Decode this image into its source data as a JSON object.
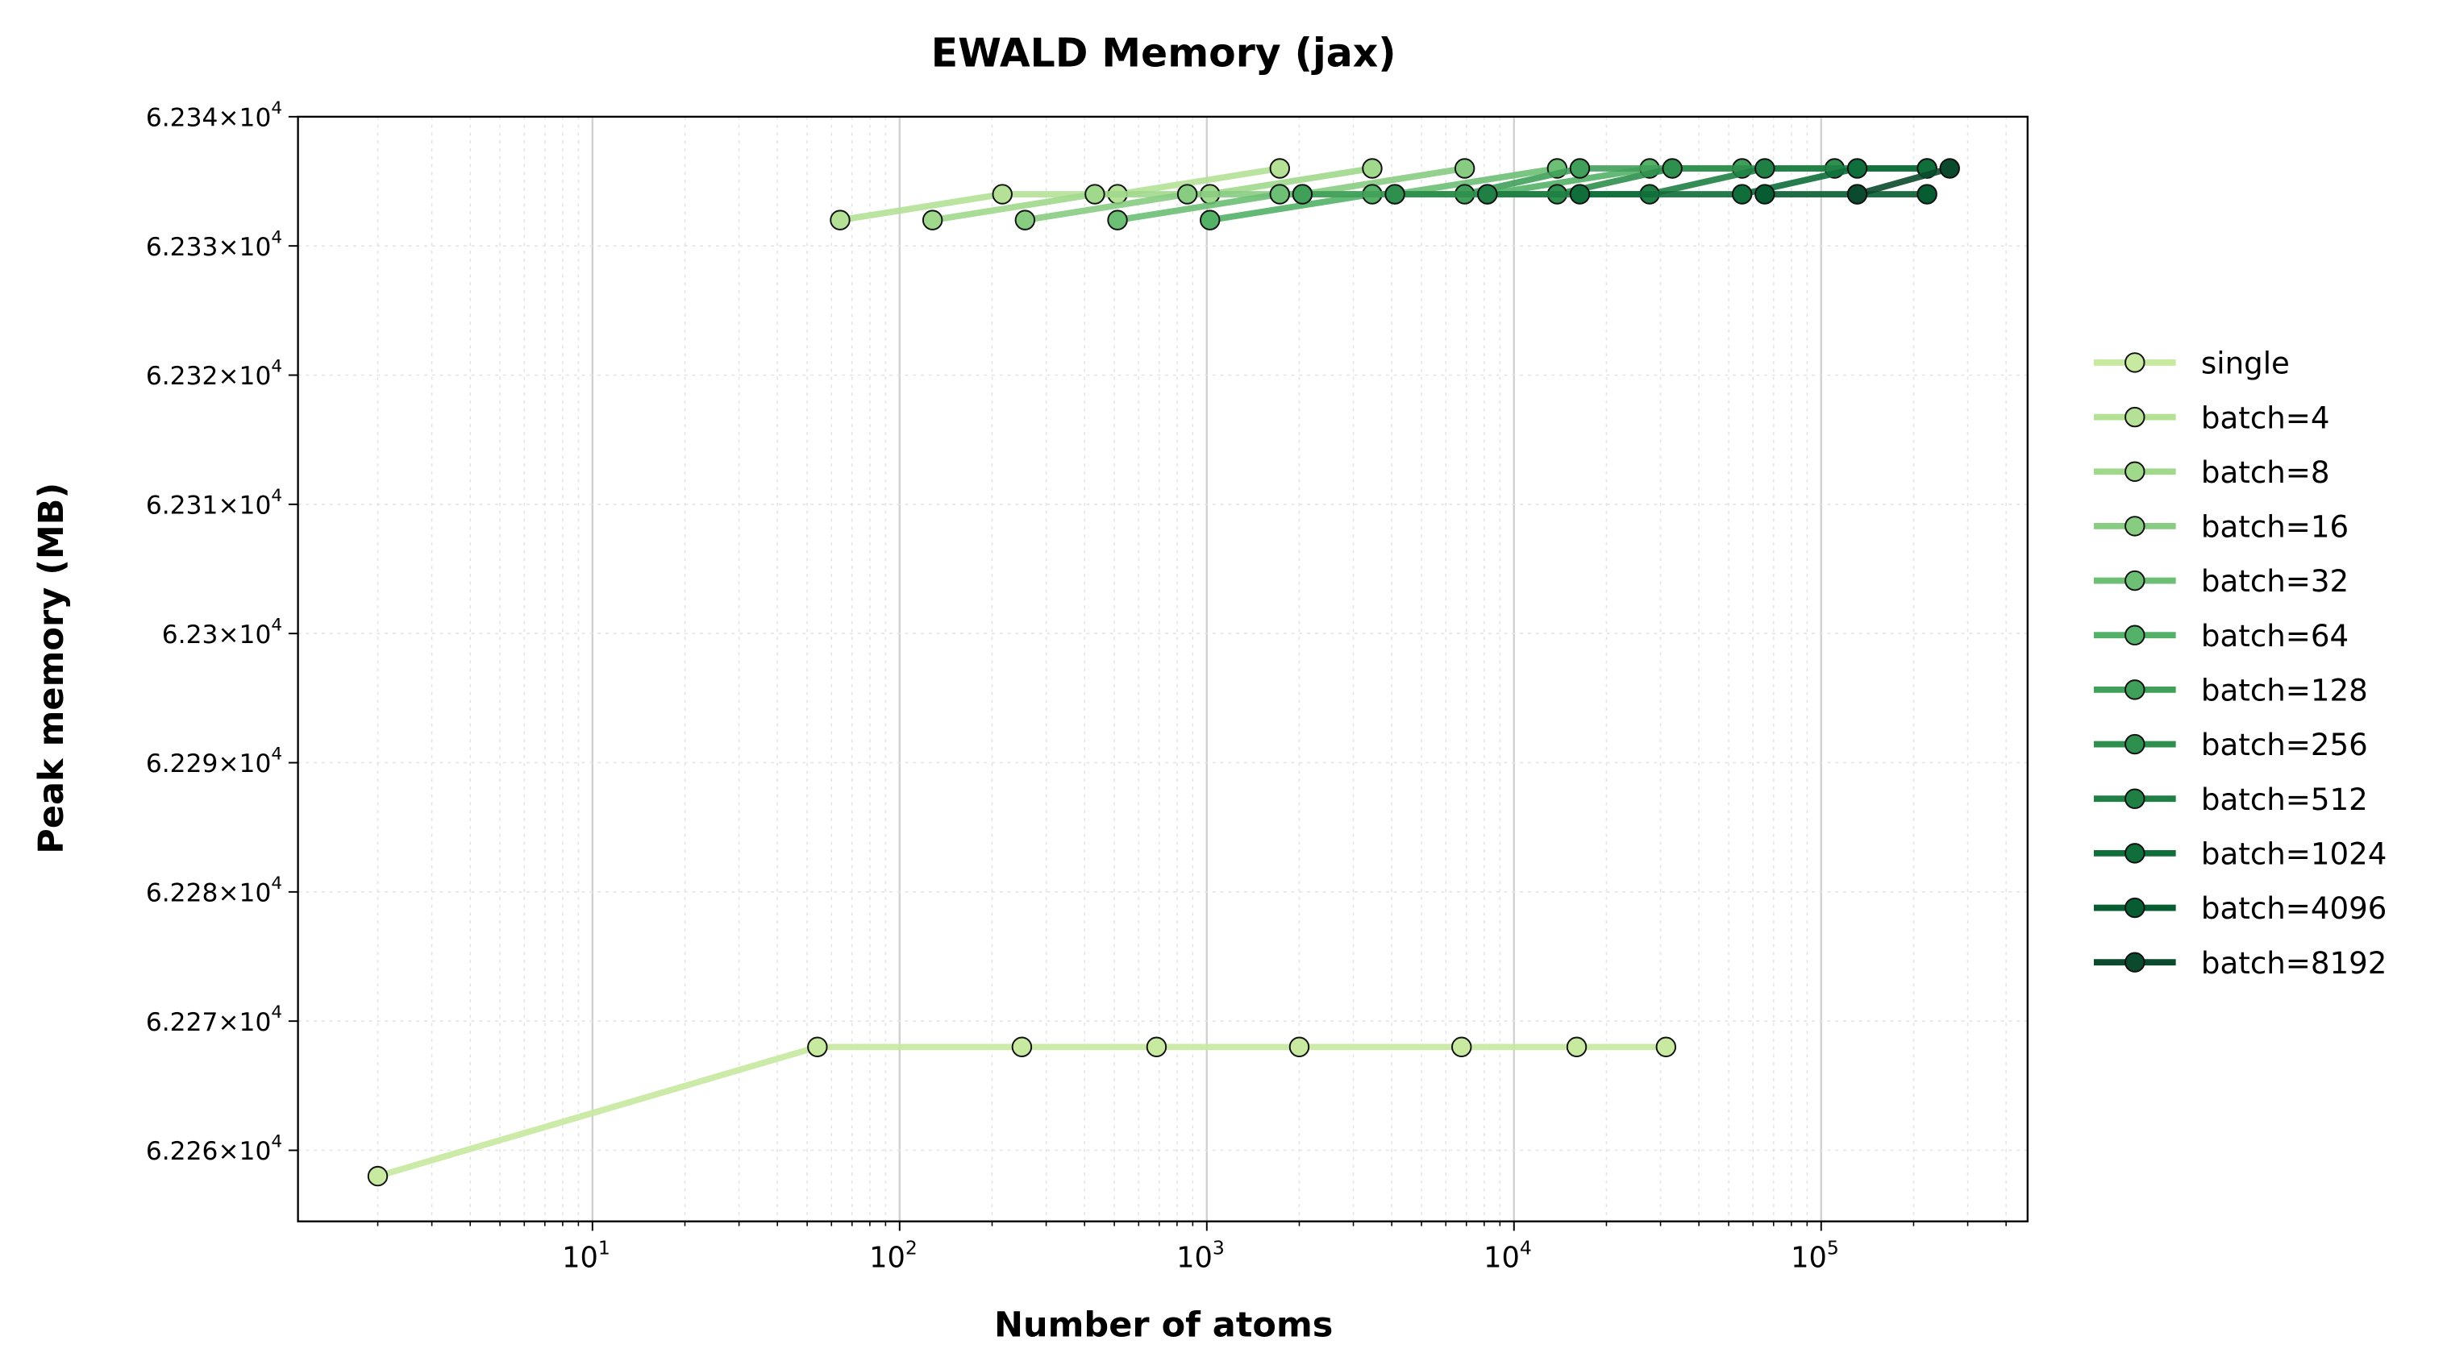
{
  "chart_data": {
    "type": "line",
    "title": "EWALD Memory (jax)",
    "xlabel": "Number of atoms",
    "ylabel": "Peak memory (MB)",
    "xscale": "log",
    "xlim": [
      1.1,
      470000
    ],
    "ylim": [
      62254.5,
      62340
    ],
    "x_ticks": [
      {
        "value": 10,
        "base": "10",
        "exp": "1"
      },
      {
        "value": 100,
        "base": "10",
        "exp": "2"
      },
      {
        "value": 1000,
        "base": "10",
        "exp": "3"
      },
      {
        "value": 10000,
        "base": "10",
        "exp": "4"
      },
      {
        "value": 100000,
        "base": "10",
        "exp": "5"
      }
    ],
    "y_ticks": [
      {
        "value": 62340,
        "mant": "6.234",
        "exp": "4"
      },
      {
        "value": 62330,
        "mant": "6.233",
        "exp": "4"
      },
      {
        "value": 62320,
        "mant": "6.232",
        "exp": "4"
      },
      {
        "value": 62310,
        "mant": "6.231",
        "exp": "4"
      },
      {
        "value": 62300,
        "mant": "6.23",
        "exp": "4"
      },
      {
        "value": 62290,
        "mant": "6.229",
        "exp": "4"
      },
      {
        "value": 62280,
        "mant": "6.228",
        "exp": "4"
      },
      {
        "value": 62270,
        "mant": "6.227",
        "exp": "4"
      },
      {
        "value": 62260,
        "mant": "6.226",
        "exp": "4"
      }
    ],
    "grid": true,
    "legend_position": "outside-right",
    "series": [
      {
        "name": "single",
        "color": "#c7e9a0",
        "x": [
          2,
          54,
          250,
          686,
          2000,
          6750,
          16000,
          31250
        ],
        "y": [
          62258,
          62268,
          62268,
          62268,
          62268,
          62268,
          62268,
          62268
        ]
      },
      {
        "name": "batch=4",
        "color": "#b5e197",
        "x": [
          64,
          216,
          512,
          1728
        ],
        "y": [
          62332,
          62334,
          62334,
          62336
        ]
      },
      {
        "name": "batch=8",
        "color": "#a0d88c",
        "x": [
          128,
          432,
          1024,
          3456
        ],
        "y": [
          62332,
          62334,
          62334,
          62336
        ]
      },
      {
        "name": "batch=16",
        "color": "#88cc82",
        "x": [
          256,
          864,
          2048,
          6912
        ],
        "y": [
          62332,
          62334,
          62334,
          62336
        ]
      },
      {
        "name": "batch=32",
        "color": "#6dbf76",
        "x": [
          512,
          1728,
          4096,
          13824
        ],
        "y": [
          62332,
          62334,
          62334,
          62336
        ]
      },
      {
        "name": "batch=64",
        "color": "#54b168",
        "x": [
          1024,
          3456,
          8192,
          27648
        ],
        "y": [
          62332,
          62334,
          62334,
          62336
        ]
      },
      {
        "name": "batch=128",
        "color": "#40a05a",
        "x": [
          2048,
          6912,
          16384,
          55296
        ],
        "y": [
          62334,
          62334,
          62336,
          62336
        ]
      },
      {
        "name": "batch=256",
        "color": "#2f8f4e",
        "x": [
          4096,
          13824,
          32768,
          110592
        ],
        "y": [
          62334,
          62334,
          62336,
          62336
        ]
      },
      {
        "name": "batch=512",
        "color": "#1f7f44",
        "x": [
          8192,
          27648,
          65536,
          221184
        ],
        "y": [
          62334,
          62334,
          62336,
          62336
        ]
      },
      {
        "name": "batch=1024",
        "color": "#106e3a",
        "x": [
          16384,
          55296,
          131072,
          221184
        ],
        "y": [
          62334,
          62334,
          62336,
          62336
        ]
      },
      {
        "name": "batch=4096",
        "color": "#075c31",
        "x": [
          65536,
          131072,
          221184
        ],
        "y": [
          62334,
          62334,
          62334
        ]
      },
      {
        "name": "batch=8192",
        "color": "#0b4a2c",
        "x": [
          131072,
          262144
        ],
        "y": [
          62334,
          62336
        ]
      }
    ]
  }
}
